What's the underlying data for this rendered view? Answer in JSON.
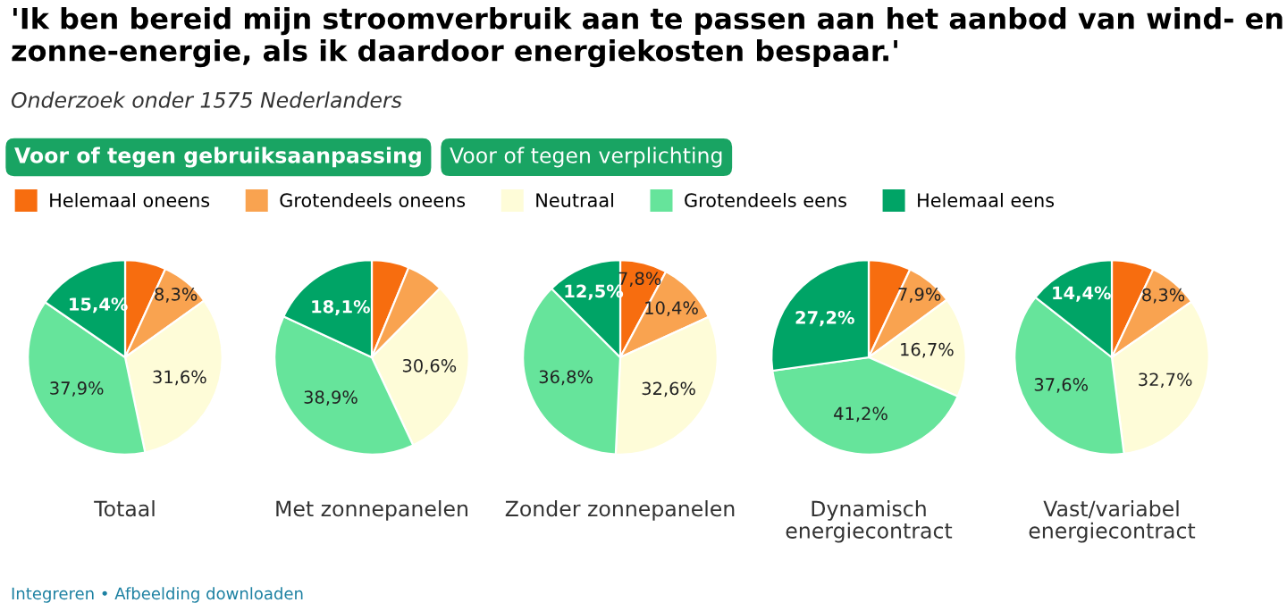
{
  "chart_data": {
    "type": "pie",
    "title": "'Ik ben bereid mijn stroomverbruik aan te passen aan het aanbod van wind- en zonne-energie, als ik daardoor energiekosten bespaar.'",
    "subtitle": "Onderzoek onder 1575 Nederlanders",
    "annotations": [
      "Voor of tegen gebruiksaanpassing",
      "Voor of tegen verplichting",
      "Integreren • Afbeelding downloaden"
    ],
    "legend": "top left",
    "categories": [
      "Helemaal oneens",
      "Grotendeels oneens",
      "Neutraal",
      "Grotendeels eens",
      "Helemaal eens"
    ],
    "colors": [
      "#f76d0f",
      "#f9a350",
      "#fefcd8",
      "#66e49b",
      "#00a466"
    ],
    "series": [
      {
        "name": "Totaal",
        "values": [
          6.8,
          8.3,
          31.6,
          37.9,
          15.4
        ],
        "value_labels": [
          null,
          "8,3%",
          "31,6%",
          "37,9%",
          "15,4%"
        ]
      },
      {
        "name": "Met zonnepanelen",
        "values": [
          6.2,
          6.2,
          30.6,
          38.9,
          18.1
        ],
        "value_labels": [
          null,
          null,
          "30,6%",
          "38,9%",
          "18,1%"
        ]
      },
      {
        "name": "Zonder zonnepanelen",
        "values": [
          7.8,
          10.4,
          32.6,
          36.8,
          12.5
        ],
        "value_labels": [
          "7,8%",
          "10,4%",
          "32,6%",
          "36,8%",
          "12,5%"
        ]
      },
      {
        "name": "Dynamisch\nenergiecontract",
        "values": [
          7.0,
          7.9,
          16.7,
          41.2,
          27.2
        ],
        "value_labels": [
          null,
          "7,9%",
          "16,7%",
          "41,2%",
          "27,2%"
        ]
      },
      {
        "name": "Vast/variabel\nenergiecontract",
        "values": [
          7.0,
          8.3,
          32.7,
          37.6,
          14.4
        ],
        "value_labels": [
          null,
          "8,3%",
          "32,7%",
          "37,6%",
          "14,4%"
        ]
      }
    ]
  }
}
